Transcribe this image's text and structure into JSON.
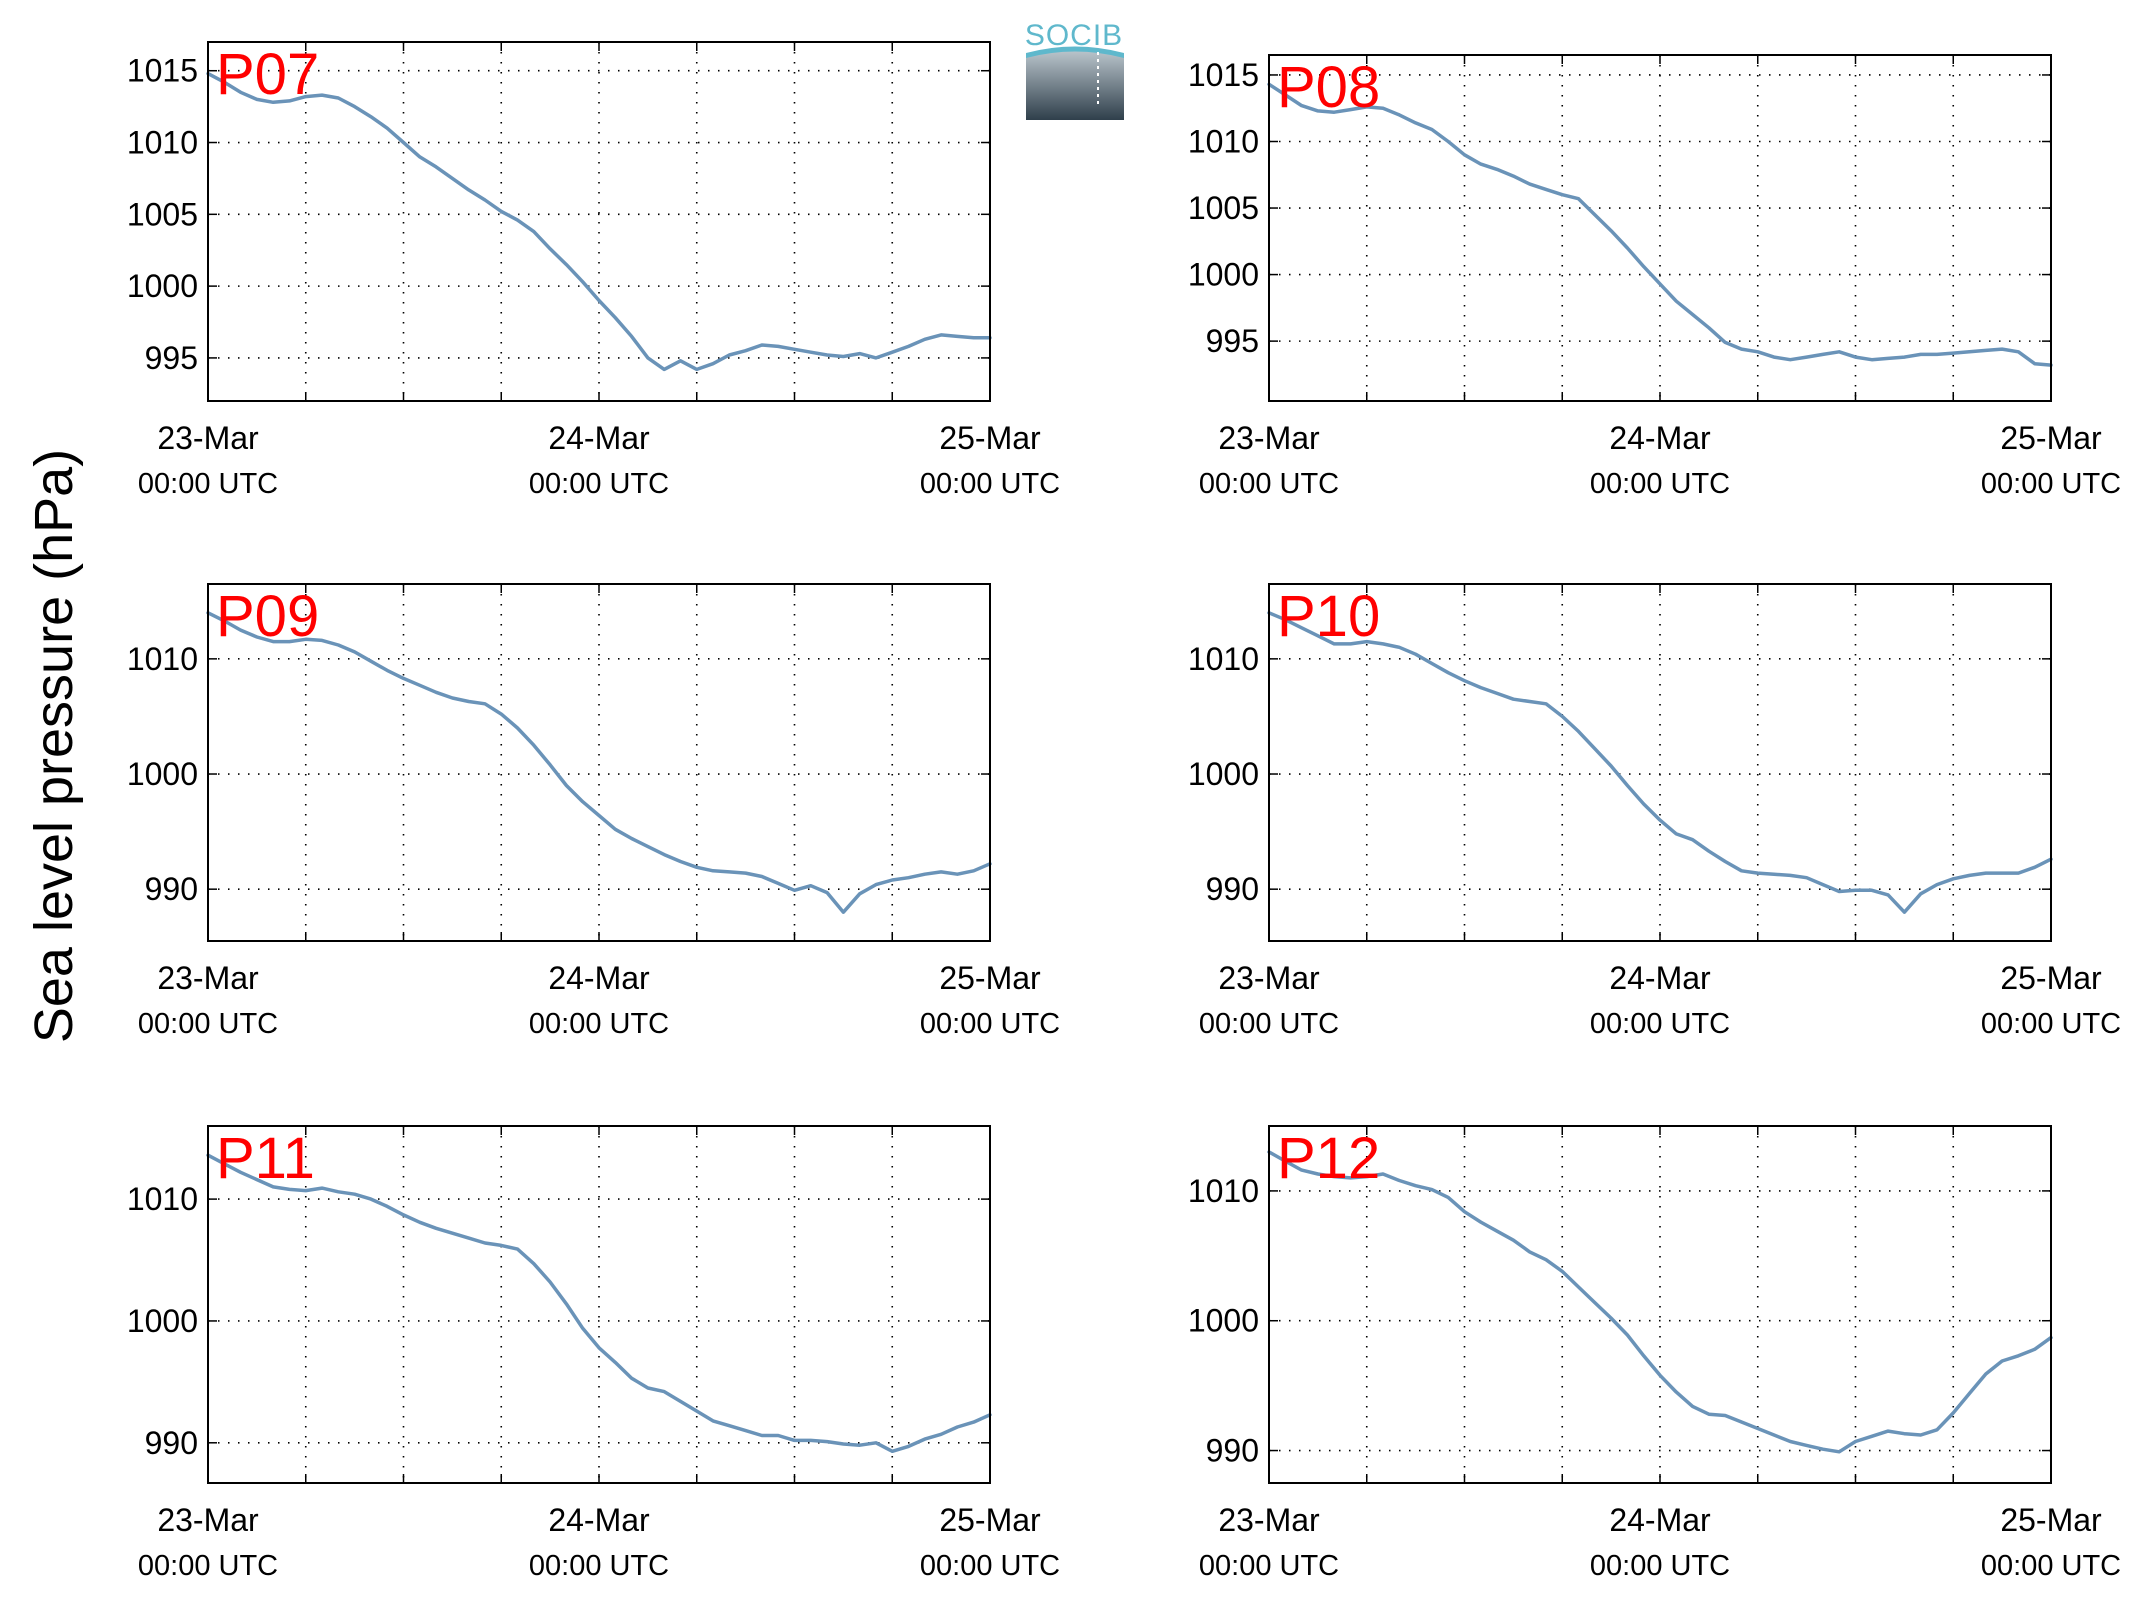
{
  "figure": {
    "ylabel": "Sea level pressure (hPa)",
    "logo_text": "SOCIB"
  },
  "colors": {
    "line": "#6a93b8",
    "panel_label": "#ff0000",
    "grid": "#000000"
  },
  "chart_data": [
    {
      "type": "line",
      "panel": "P07",
      "xlabels": [
        [
          "23-Mar",
          "00:00 UTC"
        ],
        [
          "24-Mar",
          "00:00 UTC"
        ],
        [
          "25-Mar",
          "00:00 UTC"
        ]
      ],
      "xlim": [
        0,
        48
      ],
      "ylim": [
        992,
        1017
      ],
      "yticks": [
        995,
        1000,
        1005,
        1010,
        1015
      ],
      "x": [
        0,
        1,
        2,
        3,
        4,
        5,
        6,
        7,
        8,
        9,
        10,
        11,
        12,
        13,
        14,
        15,
        16,
        17,
        18,
        19,
        20,
        21,
        22,
        23,
        24,
        25,
        26,
        27,
        28,
        29,
        30,
        31,
        32,
        33,
        34,
        35,
        36,
        37,
        38,
        39,
        40,
        41,
        42,
        43,
        44,
        45,
        46,
        47,
        48
      ],
      "y": [
        1014.8,
        1014.2,
        1013.5,
        1013.0,
        1012.8,
        1012.9,
        1013.2,
        1013.3,
        1013.1,
        1012.5,
        1011.8,
        1011.0,
        1010.0,
        1009.0,
        1008.3,
        1007.5,
        1006.7,
        1006.0,
        1005.2,
        1004.6,
        1003.8,
        1002.6,
        1001.5,
        1000.3,
        999.0,
        997.8,
        996.5,
        995.0,
        994.2,
        994.8,
        994.2,
        994.6,
        995.2,
        995.5,
        995.9,
        995.8,
        995.6,
        995.4,
        995.2,
        995.1,
        995.3,
        995.0,
        995.4,
        995.8,
        996.3,
        996.6,
        996.5,
        996.4,
        996.4
      ]
    },
    {
      "type": "line",
      "panel": "P08",
      "xlabels": [
        [
          "23-Mar",
          "00:00 UTC"
        ],
        [
          "24-Mar",
          "00:00 UTC"
        ],
        [
          "25-Mar",
          "00:00 UTC"
        ]
      ],
      "xlim": [
        0,
        48
      ],
      "ylim": [
        990.5,
        1016.5
      ],
      "yticks": [
        995,
        1000,
        1005,
        1010,
        1015
      ],
      "x": [
        0,
        1,
        2,
        3,
        4,
        5,
        6,
        7,
        8,
        9,
        10,
        11,
        12,
        13,
        14,
        15,
        16,
        17,
        18,
        19,
        20,
        21,
        22,
        23,
        24,
        25,
        26,
        27,
        28,
        29,
        30,
        31,
        32,
        33,
        34,
        35,
        36,
        37,
        38,
        39,
        40,
        41,
        42,
        43,
        44,
        45,
        46,
        47,
        48
      ],
      "y": [
        1014.3,
        1013.5,
        1012.7,
        1012.3,
        1012.2,
        1012.4,
        1012.6,
        1012.5,
        1012.0,
        1011.4,
        1010.9,
        1010.0,
        1009.0,
        1008.3,
        1007.9,
        1007.4,
        1006.8,
        1006.4,
        1006.0,
        1005.7,
        1004.5,
        1003.3,
        1002.0,
        1000.6,
        999.3,
        998.0,
        997.0,
        996.0,
        994.9,
        994.4,
        994.2,
        993.8,
        993.6,
        993.8,
        994.0,
        994.2,
        993.8,
        993.6,
        993.7,
        993.8,
        994.0,
        994.0,
        994.1,
        994.2,
        994.3,
        994.4,
        994.2,
        993.3,
        993.2
      ]
    },
    {
      "type": "line",
      "panel": "P09",
      "xlabels": [
        [
          "23-Mar",
          "00:00 UTC"
        ],
        [
          "24-Mar",
          "00:00 UTC"
        ],
        [
          "25-Mar",
          "00:00 UTC"
        ]
      ],
      "xlim": [
        0,
        48
      ],
      "ylim": [
        985.5,
        1016.5
      ],
      "yticks": [
        990,
        1000,
        1010
      ],
      "x": [
        0,
        1,
        2,
        3,
        4,
        5,
        6,
        7,
        8,
        9,
        10,
        11,
        12,
        13,
        14,
        15,
        16,
        17,
        18,
        19,
        20,
        21,
        22,
        23,
        24,
        25,
        26,
        27,
        28,
        29,
        30,
        31,
        32,
        33,
        34,
        35,
        36,
        37,
        38,
        39,
        40,
        41,
        42,
        43,
        44,
        45,
        46,
        47,
        48
      ],
      "y": [
        1014.0,
        1013.3,
        1012.5,
        1011.9,
        1011.5,
        1011.5,
        1011.7,
        1011.6,
        1011.2,
        1010.6,
        1009.8,
        1009.0,
        1008.3,
        1007.7,
        1007.1,
        1006.6,
        1006.3,
        1006.1,
        1005.2,
        1004.0,
        1002.5,
        1000.8,
        999.0,
        997.6,
        996.4,
        995.2,
        994.4,
        993.7,
        993.0,
        992.4,
        991.9,
        991.6,
        991.5,
        991.4,
        991.1,
        990.5,
        989.9,
        990.3,
        989.7,
        988.0,
        989.6,
        990.4,
        990.8,
        991.0,
        991.3,
        991.5,
        991.3,
        991.6,
        992.2
      ]
    },
    {
      "type": "line",
      "panel": "P10",
      "xlabels": [
        [
          "23-Mar",
          "00:00 UTC"
        ],
        [
          "24-Mar",
          "00:00 UTC"
        ],
        [
          "25-Mar",
          "00:00 UTC"
        ]
      ],
      "xlim": [
        0,
        48
      ],
      "ylim": [
        985.5,
        1016.5
      ],
      "yticks": [
        990,
        1000,
        1010
      ],
      "x": [
        0,
        1,
        2,
        3,
        4,
        5,
        6,
        7,
        8,
        9,
        10,
        11,
        12,
        13,
        14,
        15,
        16,
        17,
        18,
        19,
        20,
        21,
        22,
        23,
        24,
        25,
        26,
        27,
        28,
        29,
        30,
        31,
        32,
        33,
        34,
        35,
        36,
        37,
        38,
        39,
        40,
        41,
        42,
        43,
        44,
        45,
        46,
        47,
        48
      ],
      "y": [
        1014.0,
        1013.4,
        1012.7,
        1012.0,
        1011.3,
        1011.3,
        1011.5,
        1011.3,
        1011.0,
        1010.4,
        1009.6,
        1008.8,
        1008.1,
        1007.5,
        1007.0,
        1006.5,
        1006.3,
        1006.1,
        1005.0,
        1003.7,
        1002.2,
        1000.7,
        999.0,
        997.4,
        996.0,
        994.8,
        994.3,
        993.3,
        992.4,
        991.6,
        991.4,
        991.3,
        991.2,
        991.0,
        990.4,
        989.8,
        989.9,
        989.9,
        989.5,
        988.0,
        989.6,
        990.4,
        990.9,
        991.2,
        991.4,
        991.4,
        991.4,
        991.9,
        992.6
      ]
    },
    {
      "type": "line",
      "panel": "P11",
      "xlabels": [
        [
          "23-Mar",
          "00:00 UTC"
        ],
        [
          "24-Mar",
          "00:00 UTC"
        ],
        [
          "25-Mar",
          "00:00 UTC"
        ]
      ],
      "xlim": [
        0,
        48
      ],
      "ylim": [
        986.7,
        1016
      ],
      "yticks": [
        990,
        1000,
        1010
      ],
      "x": [
        0,
        1,
        2,
        3,
        4,
        5,
        6,
        7,
        8,
        9,
        10,
        11,
        12,
        13,
        14,
        15,
        16,
        17,
        18,
        19,
        20,
        21,
        22,
        23,
        24,
        25,
        26,
        27,
        28,
        29,
        30,
        31,
        32,
        33,
        34,
        35,
        36,
        37,
        38,
        39,
        40,
        41,
        42,
        43,
        44,
        45,
        46,
        47,
        48
      ],
      "y": [
        1013.6,
        1012.9,
        1012.2,
        1011.6,
        1011.0,
        1010.8,
        1010.7,
        1010.9,
        1010.6,
        1010.4,
        1010.0,
        1009.4,
        1008.7,
        1008.1,
        1007.6,
        1007.2,
        1006.8,
        1006.4,
        1006.2,
        1005.9,
        1004.7,
        1003.2,
        1001.4,
        999.4,
        997.8,
        996.6,
        995.3,
        994.5,
        994.2,
        993.4,
        992.6,
        991.8,
        991.4,
        991.0,
        990.6,
        990.6,
        990.2,
        990.2,
        990.1,
        989.9,
        989.8,
        990.0,
        989.3,
        989.7,
        990.3,
        990.7,
        991.3,
        991.7,
        992.3
      ]
    },
    {
      "type": "line",
      "panel": "P12",
      "xlabels": [
        [
          "23-Mar",
          "00:00 UTC"
        ],
        [
          "24-Mar",
          "00:00 UTC"
        ],
        [
          "25-Mar",
          "00:00 UTC"
        ]
      ],
      "xlim": [
        0,
        48
      ],
      "ylim": [
        987.5,
        1015
      ],
      "yticks": [
        990,
        1000,
        1010
      ],
      "x": [
        0,
        1,
        2,
        3,
        4,
        5,
        6,
        7,
        8,
        9,
        10,
        11,
        12,
        13,
        14,
        15,
        16,
        17,
        18,
        19,
        20,
        21,
        22,
        23,
        24,
        25,
        26,
        27,
        28,
        29,
        30,
        31,
        32,
        33,
        34,
        35,
        36,
        37,
        38,
        39,
        40,
        41,
        42,
        43,
        44,
        45,
        46,
        47,
        48
      ],
      "y": [
        1013.0,
        1012.3,
        1011.6,
        1011.3,
        1011.1,
        1011.0,
        1011.1,
        1011.3,
        1010.8,
        1010.4,
        1010.1,
        1009.5,
        1008.4,
        1007.6,
        1006.9,
        1006.2,
        1005.3,
        1004.7,
        1003.8,
        1002.6,
        1001.4,
        1000.2,
        998.9,
        997.3,
        995.8,
        994.5,
        993.4,
        992.8,
        992.7,
        992.2,
        991.7,
        991.2,
        990.7,
        990.4,
        990.1,
        989.9,
        990.7,
        991.1,
        991.5,
        991.3,
        991.2,
        991.6,
        992.9,
        994.4,
        995.9,
        996.9,
        997.3,
        997.8,
        998.7
      ]
    }
  ]
}
